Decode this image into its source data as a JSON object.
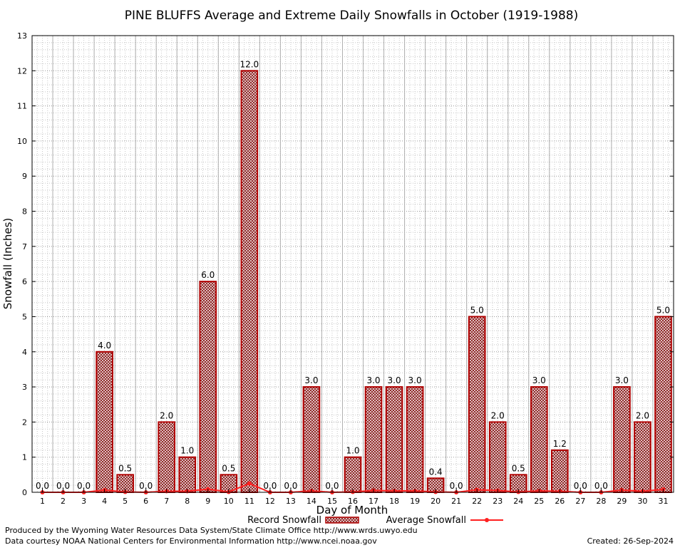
{
  "chart_data": {
    "type": "bar",
    "title": "PINE BLUFFS Average and Extreme Daily Snowfalls in October (1919-1988)",
    "xlabel": "Day of Month",
    "ylabel": "Snowfall (Inches)",
    "ylim": [
      0,
      13
    ],
    "yticks": [
      "0",
      "1",
      "2",
      "3",
      "4",
      "5",
      "6",
      "7",
      "8",
      "9",
      "10",
      "11",
      "12",
      "13"
    ],
    "categories": [
      "1",
      "2",
      "3",
      "4",
      "5",
      "6",
      "7",
      "8",
      "9",
      "10",
      "11",
      "12",
      "13",
      "14",
      "15",
      "16",
      "17",
      "18",
      "19",
      "20",
      "21",
      "22",
      "23",
      "24",
      "25",
      "26",
      "27",
      "28",
      "29",
      "30",
      "31"
    ],
    "grid": true,
    "legend_position": "bottom",
    "series": [
      {
        "name": "Record Snowfall",
        "kind": "bar",
        "color": "#b00000",
        "values": [
          0.0,
          0.0,
          0.0,
          4.0,
          0.5,
          0.0,
          2.0,
          1.0,
          6.0,
          0.5,
          12.0,
          0.0,
          0.0,
          3.0,
          0.0,
          1.0,
          3.0,
          3.0,
          3.0,
          0.4,
          0.0,
          5.0,
          2.0,
          0.5,
          3.0,
          1.2,
          0.0,
          0.0,
          3.0,
          2.0,
          5.0
        ],
        "labels": [
          "0.0",
          "0.0",
          "0.0",
          "4.0",
          "0.5",
          "0.0",
          "2.0",
          "1.0",
          "6.0",
          "0.5",
          "12.0",
          "0.0",
          "0.0",
          "3.0",
          "0.0",
          "1.0",
          "3.0",
          "3.0",
          "3.0",
          "0.4",
          "0.0",
          "5.0",
          "2.0",
          "0.5",
          "3.0",
          "1.2",
          "0.0",
          "0.0",
          "3.0",
          "2.0",
          "5.0"
        ]
      },
      {
        "name": "Average Snowfall",
        "kind": "line",
        "color": "#ff2020",
        "values": [
          0.0,
          0.0,
          0.0,
          0.06,
          0.01,
          0.0,
          0.03,
          0.03,
          0.09,
          0.01,
          0.25,
          0.0,
          0.0,
          0.04,
          0.0,
          0.01,
          0.05,
          0.04,
          0.04,
          0.01,
          0.0,
          0.07,
          0.05,
          0.01,
          0.04,
          0.03,
          0.0,
          0.0,
          0.06,
          0.03,
          0.08
        ]
      }
    ]
  },
  "footer": {
    "produced_by": "Produced by the Wyoming Water Resources Data System/State Climate Office http://www.wrds.uwyo.edu",
    "courtesy": "Data courtesy NOAA National Centers for Environmental Information http://www.ncei.noaa.gov",
    "created": "Created: 26-Sep-2024"
  }
}
